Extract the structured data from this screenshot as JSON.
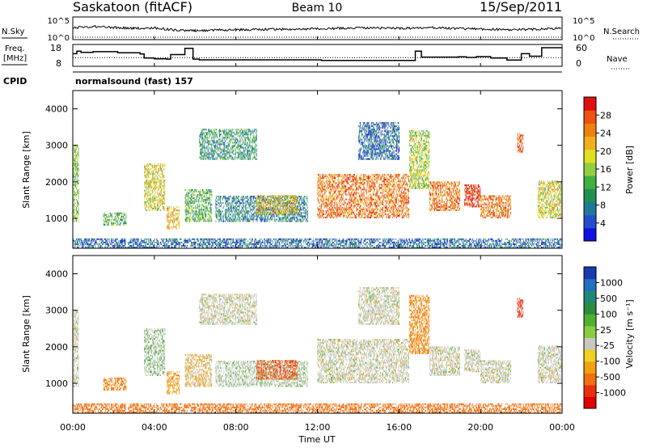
{
  "header": {
    "station": "Saskatoon (fitACF)",
    "beam": "Beam 10",
    "date": "15/Sep/2011"
  },
  "noise_panel": {
    "left_label": "N.Sky",
    "right_label": "N.Search",
    "left_ticks": [
      "10^5",
      "10^0"
    ],
    "right_ticks": [
      "10^5",
      "10^0"
    ]
  },
  "freq_panel": {
    "left_label_1": "Freq.",
    "left_label_2": "[MHz]",
    "right_label": "Nave",
    "left_ticks": [
      "18",
      "8"
    ],
    "right_ticks": [
      "60",
      "0"
    ]
  },
  "cpid": {
    "label": "CPID",
    "name": "normalsound (fast) 157"
  },
  "axes": {
    "ylabel": "Slant Range [km]",
    "xlabel": "Time UT",
    "x_tick_labels": [
      "00:00",
      "04:00",
      "08:00",
      "12:00",
      "16:00",
      "20:00",
      "00:00"
    ],
    "y_tick_labels": [
      "1000",
      "2000",
      "3000",
      "4000"
    ]
  },
  "colorbars": {
    "power": {
      "label": "Power [dB]",
      "ticks": [
        "4",
        "8",
        "12",
        "16",
        "20",
        "24",
        "28"
      ],
      "colors": [
        "#1010e0",
        "#2050d0",
        "#207898",
        "#209050",
        "#40b040",
        "#90d040",
        "#e0e020",
        "#f0b020",
        "#f08010",
        "#f05010",
        "#e01010"
      ]
    },
    "velocity": {
      "label": "Velocity [m s⁻¹]",
      "ticks": [
        "1000",
        "500",
        "100",
        "25",
        "-25",
        "-100",
        "-500",
        "-1000"
      ],
      "colors": [
        "#1a3ab0",
        "#2070c0",
        "#208878",
        "#2c8c40",
        "#50b030",
        "#88cc40",
        "#c8c8c0",
        "#f0d020",
        "#f0a010",
        "#f07010",
        "#e83010",
        "#e00000"
      ]
    }
  },
  "chart_data": {
    "type": "heatmap",
    "x_range_hours": [
      0,
      24
    ],
    "y_range_km": [
      180,
      4500
    ],
    "x_ticks_hours": [
      0,
      4,
      8,
      12,
      16,
      20,
      24
    ],
    "y_ticks_km": [
      1000,
      2000,
      3000,
      4000
    ],
    "power_range_db": [
      0,
      30
    ],
    "velocity_range": [
      -1000,
      1000
    ],
    "freq_steps": [
      {
        "t": 0.0,
        "f": 14.0
      },
      {
        "t": 0.2,
        "f": 15.5
      },
      {
        "t": 0.4,
        "f": 14.8
      },
      {
        "t": 1.0,
        "f": 15.2
      },
      {
        "t": 2.2,
        "f": 14.5
      },
      {
        "t": 3.3,
        "f": 13.8
      },
      {
        "t": 3.5,
        "f": 11.5
      },
      {
        "t": 4.0,
        "f": 11.0
      },
      {
        "t": 4.6,
        "f": 10.8
      },
      {
        "t": 4.8,
        "f": 13.5
      },
      {
        "t": 5.5,
        "f": 17.2
      },
      {
        "t": 5.9,
        "f": 10.8
      },
      {
        "t": 6.2,
        "f": 10.4
      },
      {
        "t": 12.2,
        "f": 10.0
      },
      {
        "t": 16.8,
        "f": 15.5
      },
      {
        "t": 17.1,
        "f": 12.0
      },
      {
        "t": 17.8,
        "f": 12.0
      },
      {
        "t": 18.9,
        "f": 12.2
      },
      {
        "t": 19.3,
        "f": 11.8
      },
      {
        "t": 19.8,
        "f": 12.3
      },
      {
        "t": 20.5,
        "f": 11.5
      },
      {
        "t": 21.3,
        "f": 10.3
      },
      {
        "t": 22.0,
        "f": 14.0
      },
      {
        "t": 22.4,
        "f": 12.5
      },
      {
        "t": 23.0,
        "f": 17.5
      },
      {
        "t": 24.0,
        "f": 17.5
      }
    ],
    "nave_level": 22,
    "noise_sky": [
      {
        "t": 0,
        "v": 2.6
      },
      {
        "t": 1,
        "v": 2.9
      },
      {
        "t": 2,
        "v": 2.7
      },
      {
        "t": 3,
        "v": 2.5
      },
      {
        "t": 4,
        "v": 2.6
      },
      {
        "t": 5,
        "v": 2.1
      },
      {
        "t": 6,
        "v": 2.0
      },
      {
        "t": 8,
        "v": 2.2
      },
      {
        "t": 10,
        "v": 2.3
      },
      {
        "t": 12,
        "v": 2.4
      },
      {
        "t": 14,
        "v": 2.6
      },
      {
        "t": 16,
        "v": 2.5
      },
      {
        "t": 18,
        "v": 2.6
      },
      {
        "t": 20,
        "v": 2.3
      },
      {
        "t": 22,
        "v": 2.2
      },
      {
        "t": 24,
        "v": 2.5
      }
    ],
    "scatter_regions": [
      {
        "t0": 0.0,
        "t1": 0.3,
        "r0": 900,
        "r1": 3000,
        "power": 14,
        "vel": 0
      },
      {
        "t0": 1.5,
        "t1": 2.6,
        "r0": 800,
        "r1": 1150,
        "power": 12,
        "vel": -120
      },
      {
        "t0": 3.5,
        "t1": 4.5,
        "r0": 1200,
        "r1": 2500,
        "power": 18,
        "vel": 20
      },
      {
        "t0": 4.6,
        "t1": 5.2,
        "r0": 700,
        "r1": 1300,
        "power": 20,
        "vel": -80
      },
      {
        "t0": 5.5,
        "t1": 6.8,
        "r0": 900,
        "r1": 1800,
        "power": 12,
        "vel": -30
      },
      {
        "t0": 6.2,
        "t1": 9.0,
        "r0": 2600,
        "r1": 3450,
        "power": 10,
        "vel": 0
      },
      {
        "t0": 7.0,
        "t1": 11.5,
        "r0": 900,
        "r1": 1600,
        "power": 8,
        "vel": 10
      },
      {
        "t0": 9.0,
        "t1": 11.0,
        "r0": 1100,
        "r1": 1600,
        "power": 20,
        "vel": -300
      },
      {
        "t0": 12.0,
        "t1": 16.5,
        "r0": 1000,
        "r1": 2200,
        "power": 24,
        "vel": 0
      },
      {
        "t0": 14.0,
        "t1": 16.0,
        "r0": 2600,
        "r1": 3600,
        "power": 6,
        "vel": 0
      },
      {
        "t0": 16.5,
        "t1": 17.5,
        "r0": 1800,
        "r1": 3400,
        "power": 16,
        "vel": -100
      },
      {
        "t0": 17.5,
        "t1": 19.0,
        "r0": 1200,
        "r1": 2000,
        "power": 24,
        "vel": 0
      },
      {
        "t0": 19.2,
        "t1": 20.0,
        "r0": 1300,
        "r1": 1900,
        "power": 28,
        "vel": 0
      },
      {
        "t0": 20.0,
        "t1": 21.5,
        "r0": 1000,
        "r1": 1600,
        "power": 24,
        "vel": 0
      },
      {
        "t0": 21.8,
        "t1": 22.1,
        "r0": 2800,
        "r1": 3300,
        "power": 26,
        "vel": -400
      },
      {
        "t0": 22.8,
        "t1": 24.0,
        "r0": 1000,
        "r1": 2000,
        "power": 18,
        "vel": 0
      }
    ],
    "ground_scatter_band": {
      "t0": 0,
      "t1": 24,
      "r0": 180,
      "r1": 450,
      "power": 6,
      "vel": -250
    }
  }
}
